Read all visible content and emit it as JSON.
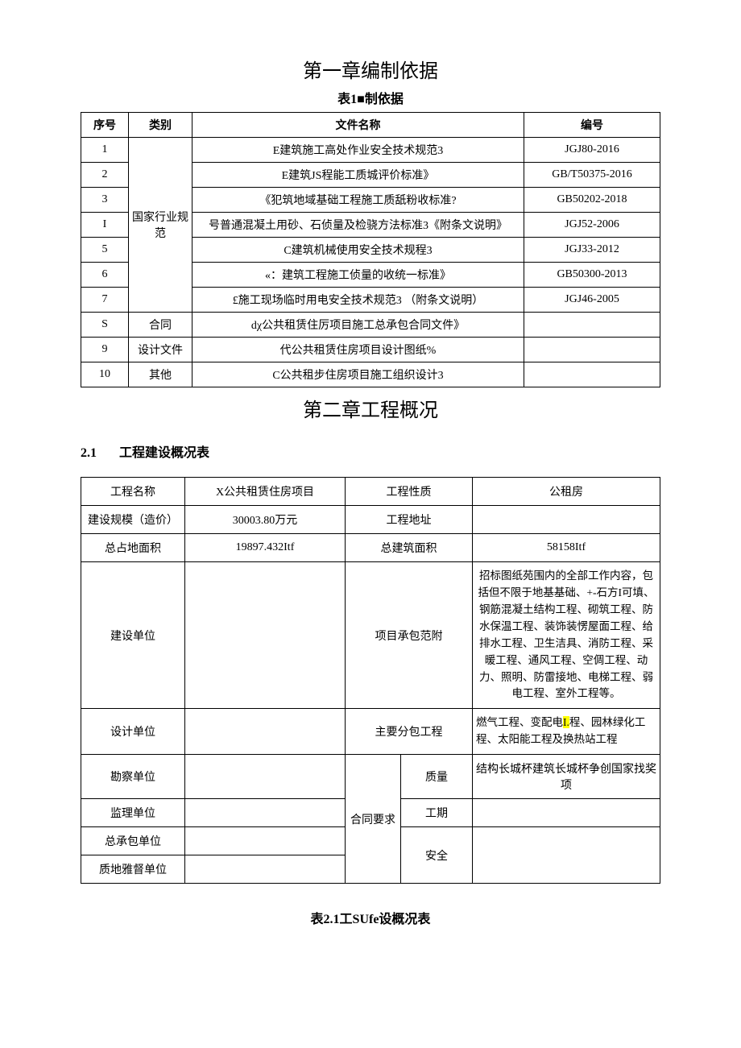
{
  "chapter1_title": "第一章编制依据",
  "table1_caption": "表1■制依据",
  "t1_headers": {
    "seq": "序号",
    "cat": "类别",
    "name": "文件名称",
    "code": "编号"
  },
  "t1_cat1": "国家行业规范",
  "t1_cat2": "合同",
  "t1_cat3": "设计文件",
  "t1_cat4": "其他",
  "t1": {
    "r1": {
      "seq": "1",
      "name": "E建筑施工高处作业安全技术规范3",
      "code": "JGJ80-2016"
    },
    "r2": {
      "seq": "2",
      "name": "E建筑JS程能工质城评价标准》",
      "code": "GB/T50375-2016"
    },
    "r3": {
      "seq": "3",
      "name": "《犯筑地域基础工程施工质舐粉收标准?",
      "code": "GB50202-2018"
    },
    "r4": {
      "seq": "I",
      "name": "号普通混凝土用砂、石侦量及检骁方法标准3《附条文说明》",
      "code": "JGJ52-2006"
    },
    "r5": {
      "seq": "5",
      "name": "C建筑机械使用安全技术规程3",
      "code": "JGJ33-2012"
    },
    "r6": {
      "seq": "6",
      "name": "«：建筑工程施工侦量的收统一标准》",
      "code": "GB50300-2013"
    },
    "r7": {
      "seq": "7",
      "name": "£施工现场临时用电安全技术规范3 （附条文说明）",
      "code": "JGJ46-2005"
    },
    "r8": {
      "seq": "S",
      "name": "dχ公共租赁住厉项目施工总承包合同文件》",
      "code": ""
    },
    "r9": {
      "seq": "9",
      "name": "代公共租赁住房项目设计图纸%",
      "code": ""
    },
    "r10": {
      "seq": "10",
      "name": "C公共租步住房项目施工组织设计3",
      "code": ""
    }
  },
  "chapter2_title": "第二章工程概况",
  "section_num": "2.1",
  "section_title": "工程建设概况表",
  "t2": {
    "r1": {
      "k1": "工程名称",
      "v1": "X公共租赁住房项目",
      "k2": "工程性质",
      "v2": "公租房"
    },
    "r2": {
      "k1": "建设规模（造价）",
      "v1": "30003.80万元",
      "k2": "工程地址",
      "v2": ""
    },
    "r3": {
      "k1": "总占地面积",
      "v1": "19897.432Itf",
      "k2": "总建筑面积",
      "v2": "58158Itf"
    },
    "r4": {
      "k1": "建设单位",
      "k2": "项目承包范附",
      "v2": "招标图纸苑围内的全部工作内容，包括但不限于地基基础、+-石方I可填、钢筋混凝土结构工程、砌筑工程、防水保温工程、装饰装愣屋面工程、给排水工程、卫生洁具、消防工程、采暖工程、通风工程、空倜工程、动力、照明、防雷接地、电梯工程、弱电工程、室外工程等。"
    },
    "r5": {
      "k1": "设计单位",
      "k2": "主要分包工程",
      "v2a": "燃气工程、变配电",
      "v2hl": "I.",
      "v2b": "程、园林绿化工程、太阳能工程及换热站工程"
    },
    "r6": {
      "k1": "勘察单位",
      "kmid": "合同要求",
      "k2": "质量",
      "v2": "结构长城杯建筑长城杯争创国家找奖项"
    },
    "r7": {
      "k1": "监理单位",
      "k2": "工期",
      "v2": ""
    },
    "r8": {
      "k1": "总承包单位",
      "k2": "安全",
      "v2": ""
    },
    "r9": {
      "k1": "质地雅督单位"
    }
  },
  "caption_bottom": "表2.1工SUfe设概况表"
}
